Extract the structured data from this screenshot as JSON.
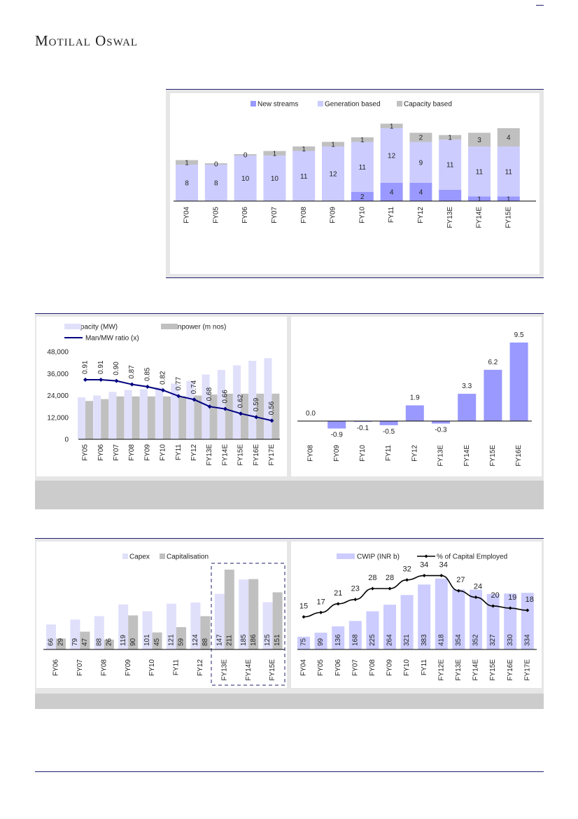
{
  "header": {
    "brand": "Motilal Oswal"
  },
  "chart_data": [
    {
      "type": "bar",
      "stacked": true,
      "categories": [
        "FY04",
        "FY05",
        "FY06",
        "FY07",
        "FY08",
        "FY09",
        "FY10",
        "FY11",
        "FY12",
        "FY13E",
        "FY14E",
        "FY15E"
      ],
      "legend_position": "top",
      "series": [
        {
          "name": "New streams",
          "color": "#9999ff",
          "values": [
            0,
            0,
            0,
            0,
            0,
            0,
            2,
            4,
            4,
            2.5,
            1,
            1
          ],
          "labels": [
            null,
            null,
            null,
            null,
            null,
            null,
            "2",
            "4",
            "4",
            null,
            "1",
            "1"
          ]
        },
        {
          "name": "Generation based",
          "color": "#ccccff",
          "values": [
            8,
            8,
            10,
            10,
            11,
            12,
            11,
            12,
            9,
            11,
            11,
            11
          ],
          "labels": [
            "8",
            "8",
            "10",
            "10",
            "11",
            "12",
            "11",
            "12",
            "9",
            "11",
            "11",
            "11"
          ]
        },
        {
          "name": "Capacity based",
          "color": "#c0c0c0",
          "values": [
            1,
            0.3,
            0.3,
            1,
            1,
            1,
            1,
            1,
            2,
            1,
            3,
            4
          ],
          "labels": [
            "1",
            "0",
            "0",
            "1",
            "1",
            "1",
            "1",
            "1",
            "2",
            "1",
            "3",
            "4"
          ]
        }
      ],
      "grid": false
    },
    {
      "type": "bar+line",
      "categories": [
        "FY05",
        "FY06",
        "FY07",
        "FY08",
        "FY09",
        "FY10",
        "FY11",
        "FY12",
        "FY13E",
        "FY14E",
        "FY15E",
        "FY16E",
        "FY17E"
      ],
      "ylim": [
        0,
        48000
      ],
      "yticks": [
        "0",
        "12,000",
        "24,000",
        "36,000",
        "48,000"
      ],
      "y2lim": [
        0.4,
        1.15
      ],
      "legend_position": "top-left",
      "series": [
        {
          "name": "Capacity (MW)",
          "type": "bar",
          "color": "#e0e0fb",
          "values": [
            23000,
            24000,
            26000,
            27000,
            27500,
            28500,
            30500,
            32000,
            35500,
            38000,
            40500,
            43000,
            44500
          ]
        },
        {
          "name": "Manpower (m nos)",
          "type": "bar",
          "color": "#c0c0c0",
          "values": [
            21000,
            22000,
            23500,
            23500,
            23500,
            23500,
            23500,
            24000,
            24500,
            25000,
            25000,
            25000,
            25000
          ]
        },
        {
          "name": "Man/MW ratio (x)",
          "type": "line",
          "axis": "secondary",
          "color": "#000080",
          "values": [
            0.91,
            0.91,
            0.9,
            0.87,
            0.85,
            0.82,
            0.77,
            0.74,
            0.68,
            0.66,
            0.62,
            0.59,
            0.56
          ],
          "labels": [
            "0.91",
            "0.91",
            "0.90",
            "0.87",
            "0.85",
            "0.82",
            "0.77",
            "0.74",
            "0.68",
            "0.66",
            "0.62",
            "0.59",
            "0.56"
          ]
        }
      ],
      "grid": false
    },
    {
      "type": "bar",
      "categories": [
        "FY08",
        "FY09",
        "FY10",
        "FY11",
        "FY12",
        "FY13E",
        "FY14E",
        "FY15E",
        "FY16E"
      ],
      "values": [
        0.0,
        -0.9,
        -0.1,
        -0.5,
        1.9,
        -0.3,
        3.3,
        6.2,
        9.5
      ],
      "labels": [
        "0.0",
        "-0.9",
        "-0.1",
        "-0.5",
        "1.9",
        "-0.3",
        "3.3",
        "6.2",
        "9.5"
      ],
      "color": "#9999ff",
      "ylim": [
        -1.5,
        10
      ],
      "grid": false
    },
    {
      "type": "bar",
      "categories": [
        "FY06",
        "FY07",
        "FY08",
        "FY09",
        "FY10",
        "FY11",
        "FY12",
        "FY13E",
        "FY14E",
        "FY15E"
      ],
      "highlighted": [
        "FY13E",
        "FY14E",
        "FY15E"
      ],
      "legend_position": "top",
      "series": [
        {
          "name": "Capex",
          "color": "#e0e0fb",
          "values": [
            66,
            79,
            88,
            119,
            101,
            121,
            124,
            147,
            185,
            125
          ]
        },
        {
          "name": "Capitalisation",
          "color": "#c0c0c0",
          "values": [
            29,
            47,
            26,
            90,
            45,
            59,
            88,
            211,
            186,
            151
          ]
        }
      ],
      "ylim": [
        0,
        220
      ],
      "grid": false
    },
    {
      "type": "bar+line",
      "categories": [
        "FY04",
        "FY05",
        "FY06",
        "FY07",
        "FY08",
        "FY09",
        "FY10",
        "FY11",
        "FY12E",
        "FY13E",
        "FY14E",
        "FY15E",
        "FY16E",
        "FY17E"
      ],
      "legend_position": "top",
      "ylim": [
        0,
        500
      ],
      "y2lim": [
        0,
        39
      ],
      "series": [
        {
          "name": "CWIP (INR b)",
          "type": "bar",
          "color": "#ccccff",
          "values": [
            75,
            99,
            136,
            168,
            225,
            264,
            321,
            383,
            418,
            354,
            352,
            327,
            330,
            334
          ]
        },
        {
          "name": "% of Capital Employed",
          "type": "line",
          "axis": "secondary",
          "color": "#000000",
          "values": [
            15,
            17,
            21,
            23,
            28,
            28,
            32,
            34,
            34,
            27,
            24,
            20,
            19,
            18
          ]
        }
      ],
      "grid": false
    }
  ]
}
